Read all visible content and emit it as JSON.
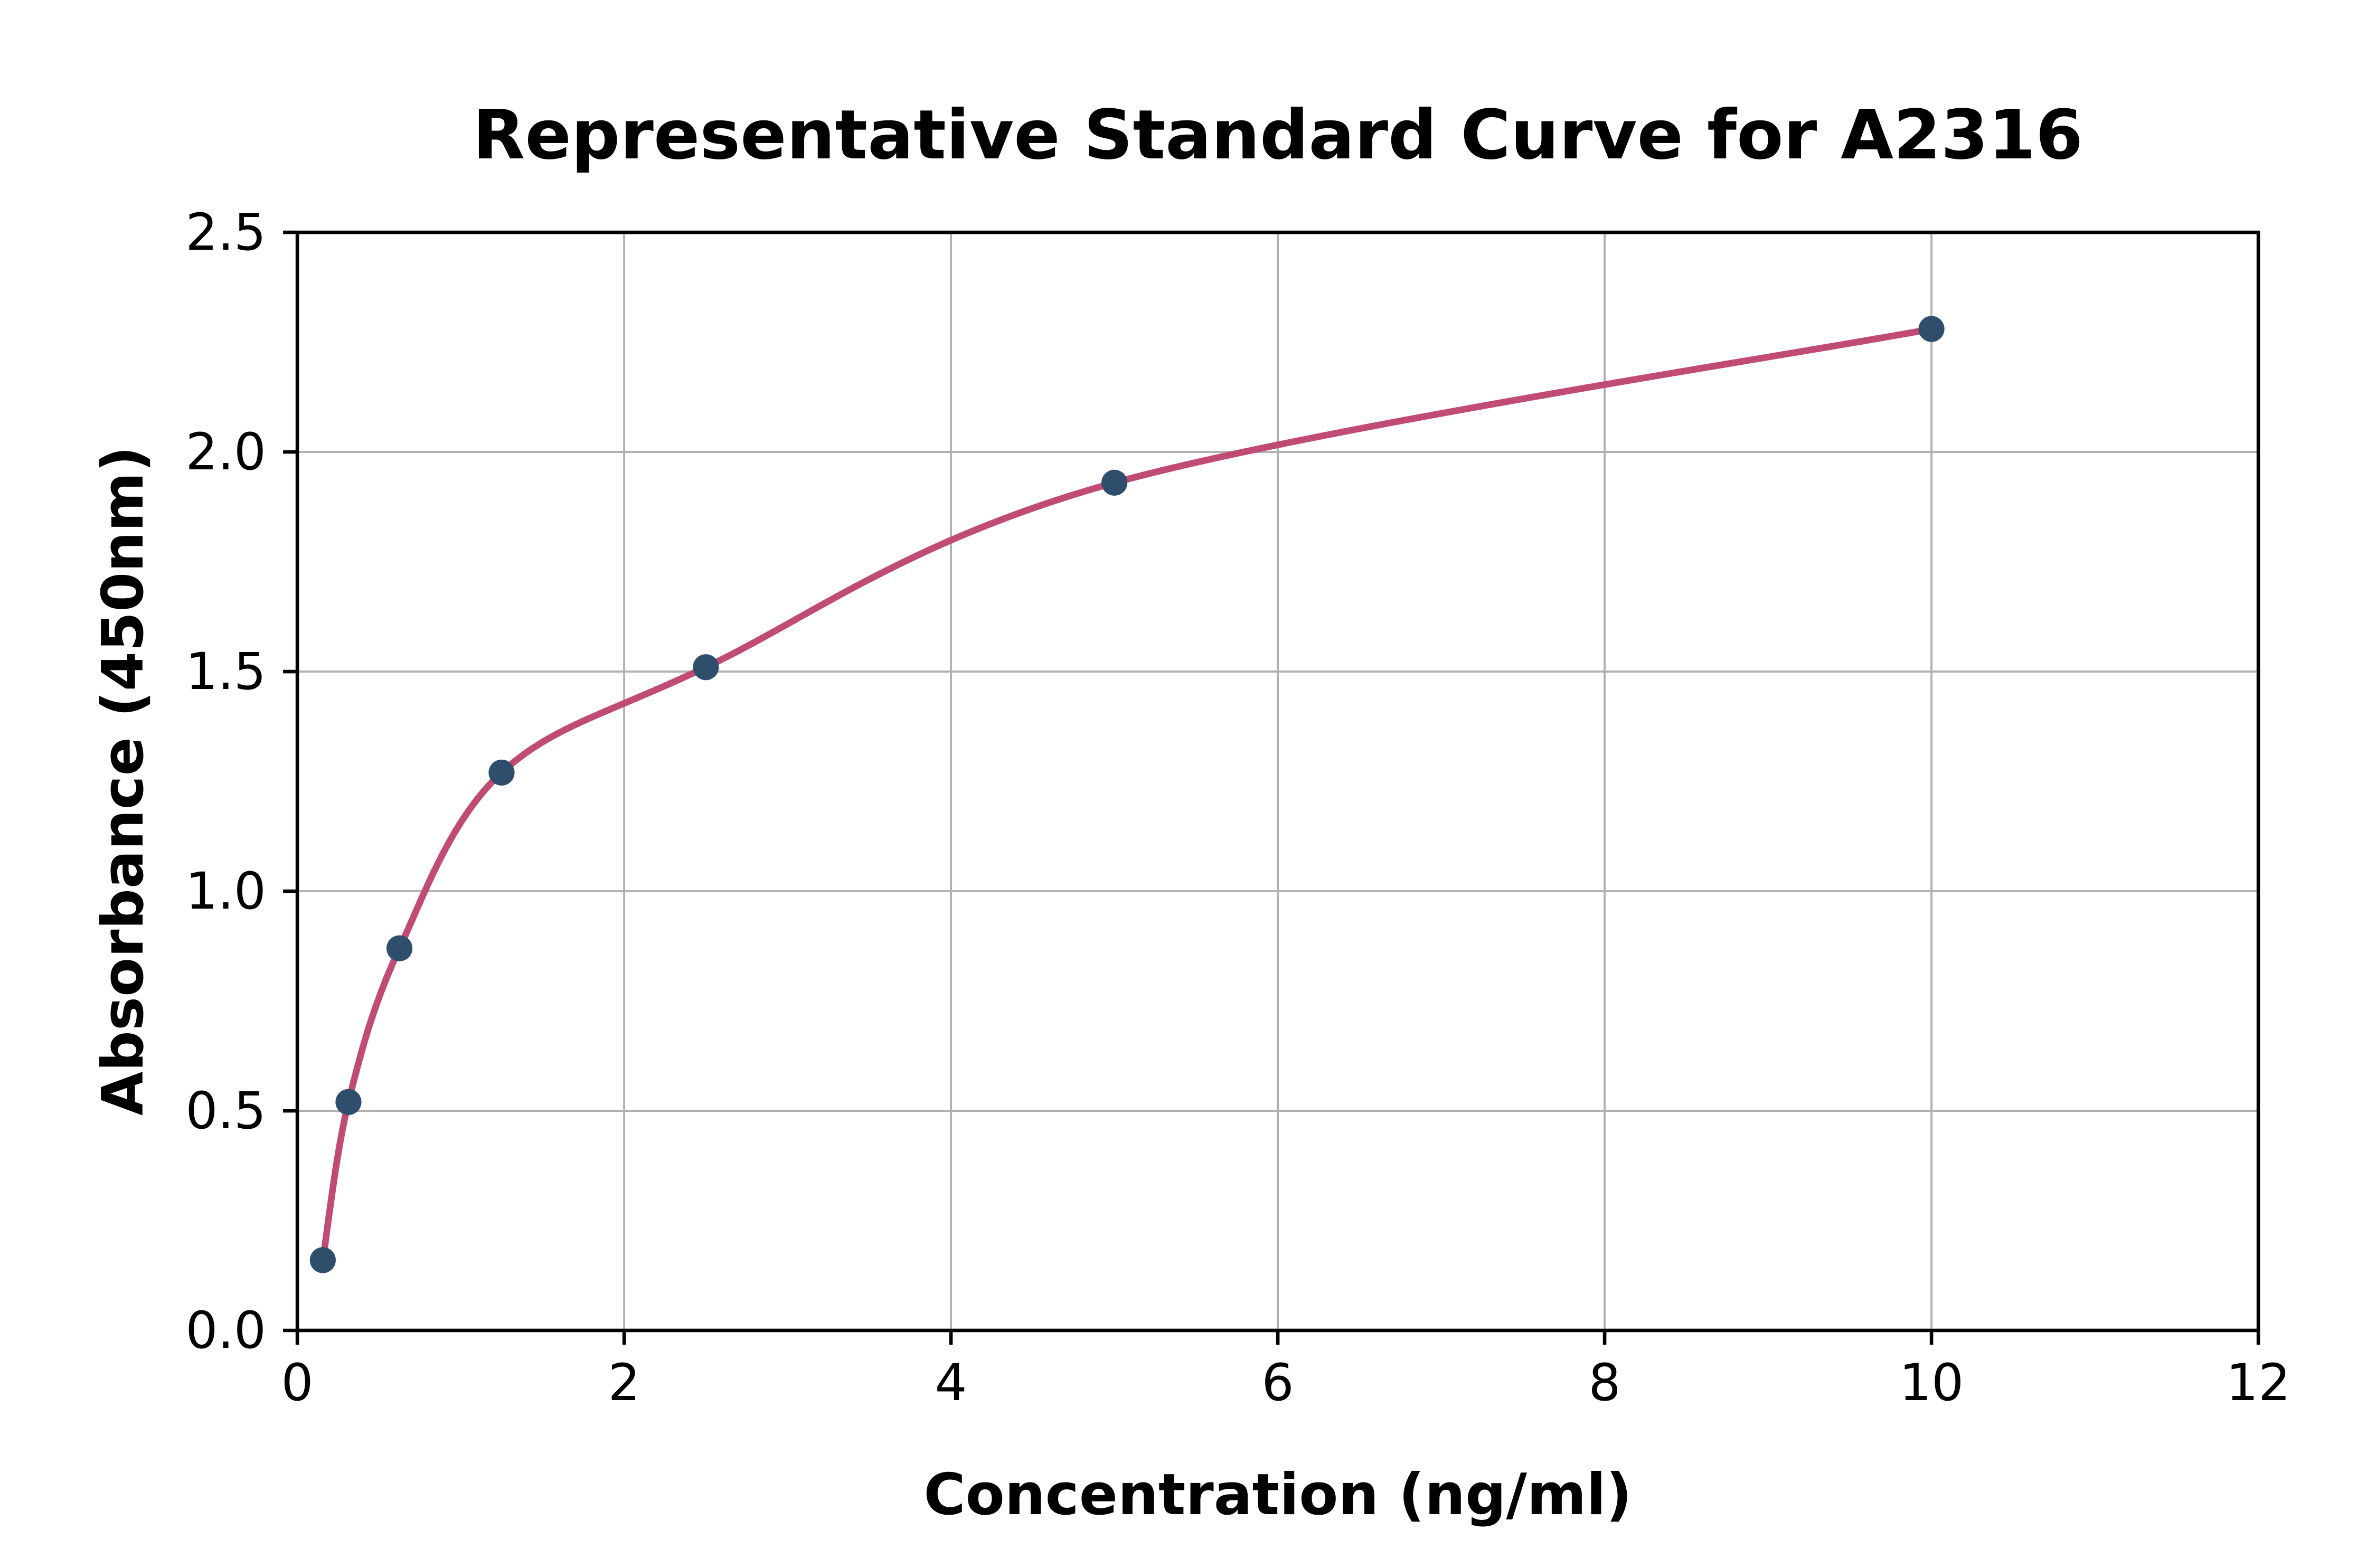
{
  "chart_data": {
    "type": "scatter",
    "title": "Representative Standard Curve for A2316",
    "xlabel": "Concentration (ng/ml)",
    "ylabel": "Absorbance (450nm)",
    "xlim": [
      0,
      12
    ],
    "ylim": [
      0,
      2.5
    ],
    "x_ticks": [
      0,
      2,
      4,
      6,
      8,
      10,
      12
    ],
    "y_ticks": [
      0,
      0.5,
      1,
      1.5,
      2,
      2.5
    ],
    "grid": "on",
    "legend": "none",
    "series": [
      {
        "name": "standard-points",
        "marker": "circle",
        "marker_color": "#2f4e6c",
        "points": [
          {
            "x": 0.156,
            "y": 0.16
          },
          {
            "x": 0.313,
            "y": 0.52
          },
          {
            "x": 0.625,
            "y": 0.87
          },
          {
            "x": 1.25,
            "y": 1.27
          },
          {
            "x": 2.5,
            "y": 1.51
          },
          {
            "x": 5,
            "y": 1.93
          },
          {
            "x": 10,
            "y": 2.28
          }
        ]
      }
    ],
    "fit_curve": {
      "name": "fitted-standard-curve",
      "color": "#c04b74",
      "x_start": 0.156,
      "x_end": 10
    },
    "colors": {
      "background": "#ffffff",
      "grid": "#b0b0b0",
      "axis": "#000000",
      "text": "#000000"
    }
  }
}
